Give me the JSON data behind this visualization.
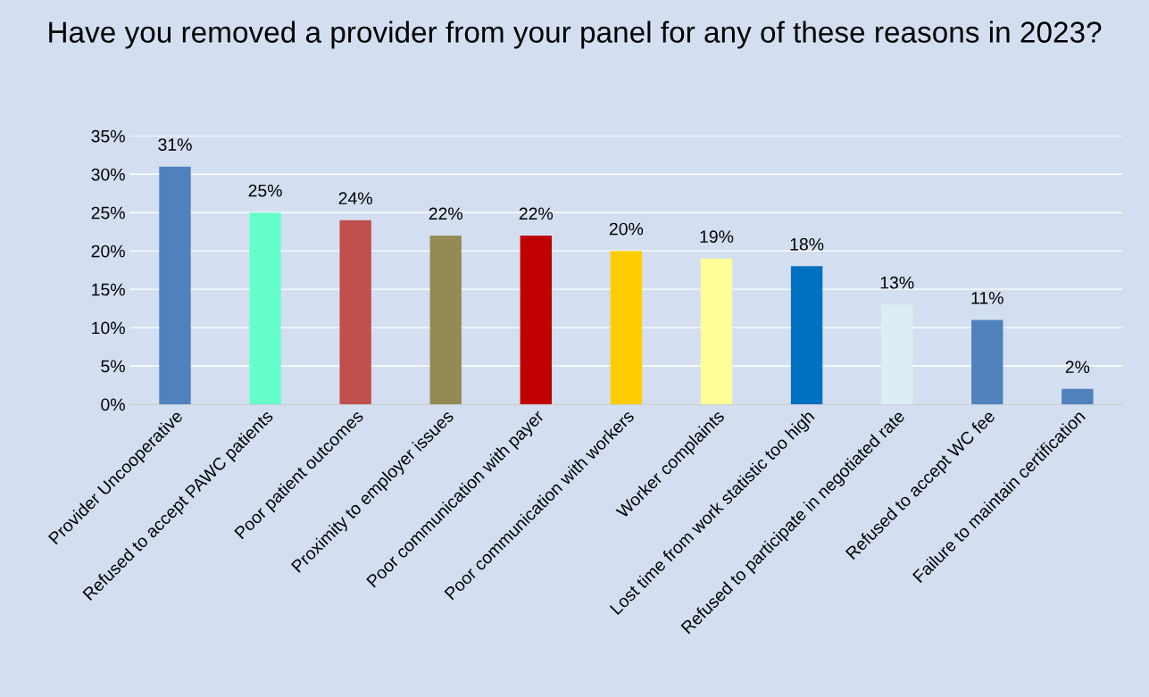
{
  "chart_data": {
    "type": "bar",
    "title": "Have you removed a provider from your panel for any of these reasons in 2023?",
    "categories": [
      "Provider Uncooperative",
      "Refused to accept PAWC patients",
      "Poor patient outcomes",
      "Proximity to employer issues",
      "Poor communication with payer",
      "Poor communication with workers",
      "Worker complaints",
      "Lost time from work statistic too high",
      "Refused to participate in negotiated rate",
      "Refused to accept WC fee",
      "Failure to maintain certification"
    ],
    "values": [
      31,
      25,
      24,
      22,
      22,
      20,
      19,
      18,
      13,
      11,
      2
    ],
    "colors": [
      "#4f81bd",
      "#66ffcc",
      "#c0504d",
      "#948a54",
      "#c00000",
      "#ffcc00",
      "#ffff99",
      "#0070c0",
      "#dbeef3",
      "#4f81bd",
      "#4f81bd"
    ],
    "value_labels": [
      "31%",
      "25%",
      "24%",
      "22%",
      "22%",
      "20%",
      "19%",
      "18%",
      "13%",
      "11%",
      "2%"
    ],
    "ylim": [
      0,
      35
    ],
    "yticks": [
      {
        "value": 0,
        "label": "0%"
      },
      {
        "value": 5,
        "label": "5%"
      },
      {
        "value": 10,
        "label": "10%"
      },
      {
        "value": 15,
        "label": "15%"
      },
      {
        "value": 20,
        "label": "20%"
      },
      {
        "value": 25,
        "label": "25%"
      },
      {
        "value": 30,
        "label": "30%"
      },
      {
        "value": 35,
        "label": "35%"
      }
    ],
    "grid": "y"
  }
}
